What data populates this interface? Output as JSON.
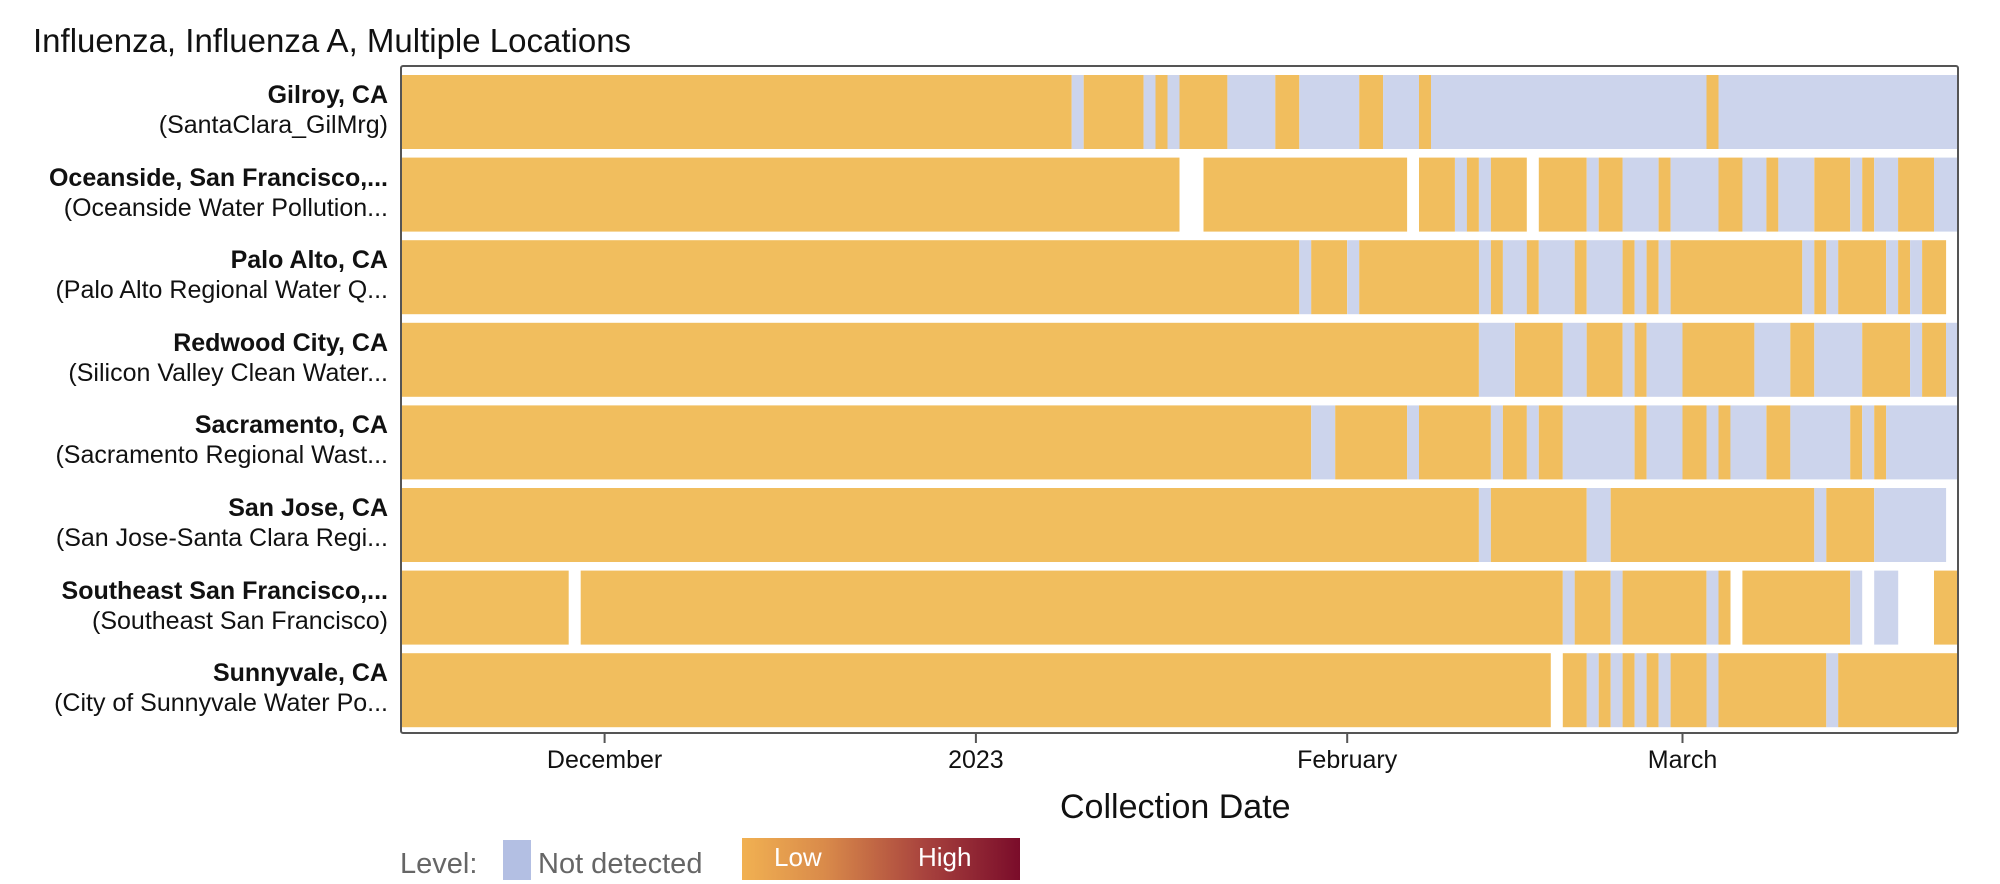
{
  "chart_data": {
    "type": "heatmap",
    "title": "Influenza, Influenza A, Multiple Locations",
    "xlabel": "Collection Date",
    "ylabel": "",
    "x_ticks": [
      {
        "label": "December",
        "date": "2022-12-01"
      },
      {
        "label": "2023",
        "date": "2023-01-01"
      },
      {
        "label": "February",
        "date": "2023-02-01"
      },
      {
        "label": "March",
        "date": "2023-03-01"
      }
    ],
    "x_range": [
      "2022-11-14",
      "2023-03-24"
    ],
    "legend": {
      "title": "Level:",
      "not_detected_label": "Not detected",
      "low_label": "Low",
      "high_label": "High"
    },
    "colors": {
      "low": "#f1be5e",
      "not_detected": "#ccd4ec",
      "frame": "#555555",
      "tick": "#555555"
    },
    "series": [
      {
        "name": "Gilroy, CA",
        "site": "(SantaClara_GilMrg)",
        "segments": [
          {
            "start": "2022-11-14",
            "end": "2023-01-09",
            "level": "low"
          },
          {
            "start": "2023-01-09",
            "end": "2023-01-10",
            "level": "not_detected"
          },
          {
            "start": "2023-01-10",
            "end": "2023-01-15",
            "level": "low"
          },
          {
            "start": "2023-01-15",
            "end": "2023-01-16",
            "level": "not_detected"
          },
          {
            "start": "2023-01-16",
            "end": "2023-01-17",
            "level": "low"
          },
          {
            "start": "2023-01-17",
            "end": "2023-01-18",
            "level": "not_detected"
          },
          {
            "start": "2023-01-18",
            "end": "2023-01-22",
            "level": "low"
          },
          {
            "start": "2023-01-22",
            "end": "2023-01-26",
            "level": "not_detected"
          },
          {
            "start": "2023-01-26",
            "end": "2023-01-28",
            "level": "low"
          },
          {
            "start": "2023-01-28",
            "end": "2023-02-02",
            "level": "not_detected"
          },
          {
            "start": "2023-02-02",
            "end": "2023-02-04",
            "level": "low"
          },
          {
            "start": "2023-02-04",
            "end": "2023-02-07",
            "level": "not_detected"
          },
          {
            "start": "2023-02-07",
            "end": "2023-02-08",
            "level": "low"
          },
          {
            "start": "2023-02-08",
            "end": "2023-03-03",
            "level": "not_detected"
          },
          {
            "start": "2023-03-03",
            "end": "2023-03-04",
            "level": "low"
          },
          {
            "start": "2023-03-04",
            "end": "2023-03-24",
            "level": "not_detected"
          }
        ]
      },
      {
        "name": "Oceanside, San Francisco,...",
        "site": "(Oceanside Water Pollution...",
        "segments": [
          {
            "start": "2022-11-14",
            "end": "2023-01-18",
            "level": "low"
          },
          {
            "start": "2023-01-20",
            "end": "2023-02-06",
            "level": "low"
          },
          {
            "start": "2023-02-07",
            "end": "2023-02-10",
            "level": "low"
          },
          {
            "start": "2023-02-10",
            "end": "2023-02-11",
            "level": "not_detected"
          },
          {
            "start": "2023-02-11",
            "end": "2023-02-12",
            "level": "low"
          },
          {
            "start": "2023-02-12",
            "end": "2023-02-13",
            "level": "not_detected"
          },
          {
            "start": "2023-02-13",
            "end": "2023-02-16",
            "level": "low"
          },
          {
            "start": "2023-02-17",
            "end": "2023-02-21",
            "level": "low"
          },
          {
            "start": "2023-02-21",
            "end": "2023-02-22",
            "level": "not_detected"
          },
          {
            "start": "2023-02-22",
            "end": "2023-02-24",
            "level": "low"
          },
          {
            "start": "2023-02-24",
            "end": "2023-02-27",
            "level": "not_detected"
          },
          {
            "start": "2023-02-27",
            "end": "2023-02-28",
            "level": "low"
          },
          {
            "start": "2023-02-28",
            "end": "2023-03-04",
            "level": "not_detected"
          },
          {
            "start": "2023-03-04",
            "end": "2023-03-06",
            "level": "low"
          },
          {
            "start": "2023-03-06",
            "end": "2023-03-08",
            "level": "not_detected"
          },
          {
            "start": "2023-03-08",
            "end": "2023-03-09",
            "level": "low"
          },
          {
            "start": "2023-03-09",
            "end": "2023-03-12",
            "level": "not_detected"
          },
          {
            "start": "2023-03-12",
            "end": "2023-03-15",
            "level": "low"
          },
          {
            "start": "2023-03-15",
            "end": "2023-03-16",
            "level": "not_detected"
          },
          {
            "start": "2023-03-16",
            "end": "2023-03-17",
            "level": "low"
          },
          {
            "start": "2023-03-17",
            "end": "2023-03-19",
            "level": "not_detected"
          },
          {
            "start": "2023-03-19",
            "end": "2023-03-22",
            "level": "low"
          },
          {
            "start": "2023-03-22",
            "end": "2023-03-24",
            "level": "not_detected"
          }
        ]
      },
      {
        "name": "Palo Alto, CA",
        "site": "(Palo Alto Regional Water Q...",
        "segments": [
          {
            "start": "2022-11-14",
            "end": "2023-01-28",
            "level": "low"
          },
          {
            "start": "2023-01-28",
            "end": "2023-01-29",
            "level": "not_detected"
          },
          {
            "start": "2023-01-29",
            "end": "2023-02-01",
            "level": "low"
          },
          {
            "start": "2023-02-01",
            "end": "2023-02-02",
            "level": "not_detected"
          },
          {
            "start": "2023-02-02",
            "end": "2023-02-12",
            "level": "low"
          },
          {
            "start": "2023-02-12",
            "end": "2023-02-13",
            "level": "not_detected"
          },
          {
            "start": "2023-02-13",
            "end": "2023-02-14",
            "level": "low"
          },
          {
            "start": "2023-02-14",
            "end": "2023-02-16",
            "level": "not_detected"
          },
          {
            "start": "2023-02-16",
            "end": "2023-02-17",
            "level": "low"
          },
          {
            "start": "2023-02-17",
            "end": "2023-02-20",
            "level": "not_detected"
          },
          {
            "start": "2023-02-20",
            "end": "2023-02-21",
            "level": "low"
          },
          {
            "start": "2023-02-21",
            "end": "2023-02-24",
            "level": "not_detected"
          },
          {
            "start": "2023-02-24",
            "end": "2023-02-25",
            "level": "low"
          },
          {
            "start": "2023-02-25",
            "end": "2023-02-26",
            "level": "not_detected"
          },
          {
            "start": "2023-02-26",
            "end": "2023-02-27",
            "level": "low"
          },
          {
            "start": "2023-02-27",
            "end": "2023-02-28",
            "level": "not_detected"
          },
          {
            "start": "2023-02-28",
            "end": "2023-03-11",
            "level": "low"
          },
          {
            "start": "2023-03-11",
            "end": "2023-03-12",
            "level": "not_detected"
          },
          {
            "start": "2023-03-12",
            "end": "2023-03-13",
            "level": "low"
          },
          {
            "start": "2023-03-13",
            "end": "2023-03-14",
            "level": "not_detected"
          },
          {
            "start": "2023-03-14",
            "end": "2023-03-18",
            "level": "low"
          },
          {
            "start": "2023-03-18",
            "end": "2023-03-19",
            "level": "not_detected"
          },
          {
            "start": "2023-03-19",
            "end": "2023-03-20",
            "level": "low"
          },
          {
            "start": "2023-03-20",
            "end": "2023-03-21",
            "level": "not_detected"
          },
          {
            "start": "2023-03-21",
            "end": "2023-03-23",
            "level": "low"
          }
        ]
      },
      {
        "name": "Redwood City, CA",
        "site": "(Silicon Valley Clean Water...",
        "segments": [
          {
            "start": "2022-11-14",
            "end": "2023-02-12",
            "level": "low"
          },
          {
            "start": "2023-02-12",
            "end": "2023-02-15",
            "level": "not_detected"
          },
          {
            "start": "2023-02-15",
            "end": "2023-02-19",
            "level": "low"
          },
          {
            "start": "2023-02-19",
            "end": "2023-02-21",
            "level": "not_detected"
          },
          {
            "start": "2023-02-21",
            "end": "2023-02-24",
            "level": "low"
          },
          {
            "start": "2023-02-24",
            "end": "2023-02-25",
            "level": "not_detected"
          },
          {
            "start": "2023-02-25",
            "end": "2023-02-26",
            "level": "low"
          },
          {
            "start": "2023-02-26",
            "end": "2023-03-01",
            "level": "not_detected"
          },
          {
            "start": "2023-03-01",
            "end": "2023-03-07",
            "level": "low"
          },
          {
            "start": "2023-03-07",
            "end": "2023-03-10",
            "level": "not_detected"
          },
          {
            "start": "2023-03-10",
            "end": "2023-03-12",
            "level": "low"
          },
          {
            "start": "2023-03-12",
            "end": "2023-03-16",
            "level": "not_detected"
          },
          {
            "start": "2023-03-16",
            "end": "2023-03-20",
            "level": "low"
          },
          {
            "start": "2023-03-20",
            "end": "2023-03-21",
            "level": "not_detected"
          },
          {
            "start": "2023-03-21",
            "end": "2023-03-23",
            "level": "low"
          },
          {
            "start": "2023-03-23",
            "end": "2023-03-24",
            "level": "not_detected"
          }
        ]
      },
      {
        "name": "Sacramento, CA",
        "site": "(Sacramento Regional Wast...",
        "segments": [
          {
            "start": "2022-11-14",
            "end": "2023-01-29",
            "level": "low"
          },
          {
            "start": "2023-01-29",
            "end": "2023-01-31",
            "level": "not_detected"
          },
          {
            "start": "2023-01-31",
            "end": "2023-02-06",
            "level": "low"
          },
          {
            "start": "2023-02-06",
            "end": "2023-02-07",
            "level": "not_detected"
          },
          {
            "start": "2023-02-07",
            "end": "2023-02-13",
            "level": "low"
          },
          {
            "start": "2023-02-13",
            "end": "2023-02-14",
            "level": "not_detected"
          },
          {
            "start": "2023-02-14",
            "end": "2023-02-16",
            "level": "low"
          },
          {
            "start": "2023-02-16",
            "end": "2023-02-17",
            "level": "not_detected"
          },
          {
            "start": "2023-02-17",
            "end": "2023-02-19",
            "level": "low"
          },
          {
            "start": "2023-02-19",
            "end": "2023-02-25",
            "level": "not_detected"
          },
          {
            "start": "2023-02-25",
            "end": "2023-02-26",
            "level": "low"
          },
          {
            "start": "2023-02-26",
            "end": "2023-02-29",
            "level": "not_detected"
          },
          {
            "start": "2023-02-29",
            "end": "2023-03-03",
            "level": "low"
          },
          {
            "start": "2023-03-03",
            "end": "2023-03-04",
            "level": "not_detected"
          },
          {
            "start": "2023-03-04",
            "end": "2023-03-05",
            "level": "low"
          },
          {
            "start": "2023-03-05",
            "end": "2023-03-08",
            "level": "not_detected"
          },
          {
            "start": "2023-03-08",
            "end": "2023-03-10",
            "level": "low"
          },
          {
            "start": "2023-03-10",
            "end": "2023-03-15",
            "level": "not_detected"
          },
          {
            "start": "2023-03-15",
            "end": "2023-03-16",
            "level": "low"
          },
          {
            "start": "2023-03-16",
            "end": "2023-03-17",
            "level": "not_detected"
          },
          {
            "start": "2023-03-17",
            "end": "2023-03-18",
            "level": "low"
          },
          {
            "start": "2023-03-18",
            "end": "2023-03-24",
            "level": "not_detected"
          }
        ]
      },
      {
        "name": "San Jose, CA",
        "site": "(San Jose-Santa Clara Regi...",
        "segments": [
          {
            "start": "2022-11-14",
            "end": "2023-02-12",
            "level": "low"
          },
          {
            "start": "2023-02-12",
            "end": "2023-02-13",
            "level": "not_detected"
          },
          {
            "start": "2023-02-13",
            "end": "2023-02-21",
            "level": "low"
          },
          {
            "start": "2023-02-21",
            "end": "2023-02-23",
            "level": "not_detected"
          },
          {
            "start": "2023-02-23",
            "end": "2023-03-12",
            "level": "low"
          },
          {
            "start": "2023-03-12",
            "end": "2023-03-13",
            "level": "not_detected"
          },
          {
            "start": "2023-03-13",
            "end": "2023-03-17",
            "level": "low"
          },
          {
            "start": "2023-03-17",
            "end": "2023-03-23",
            "level": "not_detected"
          }
        ]
      },
      {
        "name": "Southeast San Francisco,...",
        "site": "(Southeast San Francisco)",
        "segments": [
          {
            "start": "2022-11-14",
            "end": "2022-11-28",
            "level": "low"
          },
          {
            "start": "2022-11-29",
            "end": "2023-02-19",
            "level": "low"
          },
          {
            "start": "2023-02-19",
            "end": "2023-02-20",
            "level": "not_detected"
          },
          {
            "start": "2023-02-20",
            "end": "2023-02-23",
            "level": "low"
          },
          {
            "start": "2023-02-23",
            "end": "2023-02-24",
            "level": "not_detected"
          },
          {
            "start": "2023-02-24",
            "end": "2023-03-03",
            "level": "low"
          },
          {
            "start": "2023-03-03",
            "end": "2023-03-04",
            "level": "not_detected"
          },
          {
            "start": "2023-03-04",
            "end": "2023-03-05",
            "level": "low"
          },
          {
            "start": "2023-03-06",
            "end": "2023-03-15",
            "level": "low"
          },
          {
            "start": "2023-03-15",
            "end": "2023-03-16",
            "level": "not_detected"
          },
          {
            "start": "2023-03-17",
            "end": "2023-03-19",
            "level": "not_detected"
          },
          {
            "start": "2023-03-22",
            "end": "2023-03-24",
            "level": "low"
          }
        ]
      },
      {
        "name": "Sunnyvale, CA",
        "site": "(City of Sunnyvale Water Po...",
        "segments": [
          {
            "start": "2022-11-14",
            "end": "2023-02-18",
            "level": "low"
          },
          {
            "start": "2023-02-19",
            "end": "2023-02-21",
            "level": "low"
          },
          {
            "start": "2023-02-21",
            "end": "2023-02-22",
            "level": "not_detected"
          },
          {
            "start": "2023-02-22",
            "end": "2023-02-23",
            "level": "low"
          },
          {
            "start": "2023-02-23",
            "end": "2023-02-24",
            "level": "not_detected"
          },
          {
            "start": "2023-02-24",
            "end": "2023-02-25",
            "level": "low"
          },
          {
            "start": "2023-02-25",
            "end": "2023-02-26",
            "level": "not_detected"
          },
          {
            "start": "2023-02-26",
            "end": "2023-02-27",
            "level": "low"
          },
          {
            "start": "2023-02-27",
            "end": "2023-02-28",
            "level": "not_detected"
          },
          {
            "start": "2023-02-28",
            "end": "2023-03-03",
            "level": "low"
          },
          {
            "start": "2023-03-03",
            "end": "2023-03-04",
            "level": "not_detected"
          },
          {
            "start": "2023-03-04",
            "end": "2023-03-13",
            "level": "low"
          },
          {
            "start": "2023-03-13",
            "end": "2023-03-14",
            "level": "not_detected"
          },
          {
            "start": "2023-03-14",
            "end": "2023-03-24",
            "level": "low"
          }
        ]
      }
    ]
  }
}
